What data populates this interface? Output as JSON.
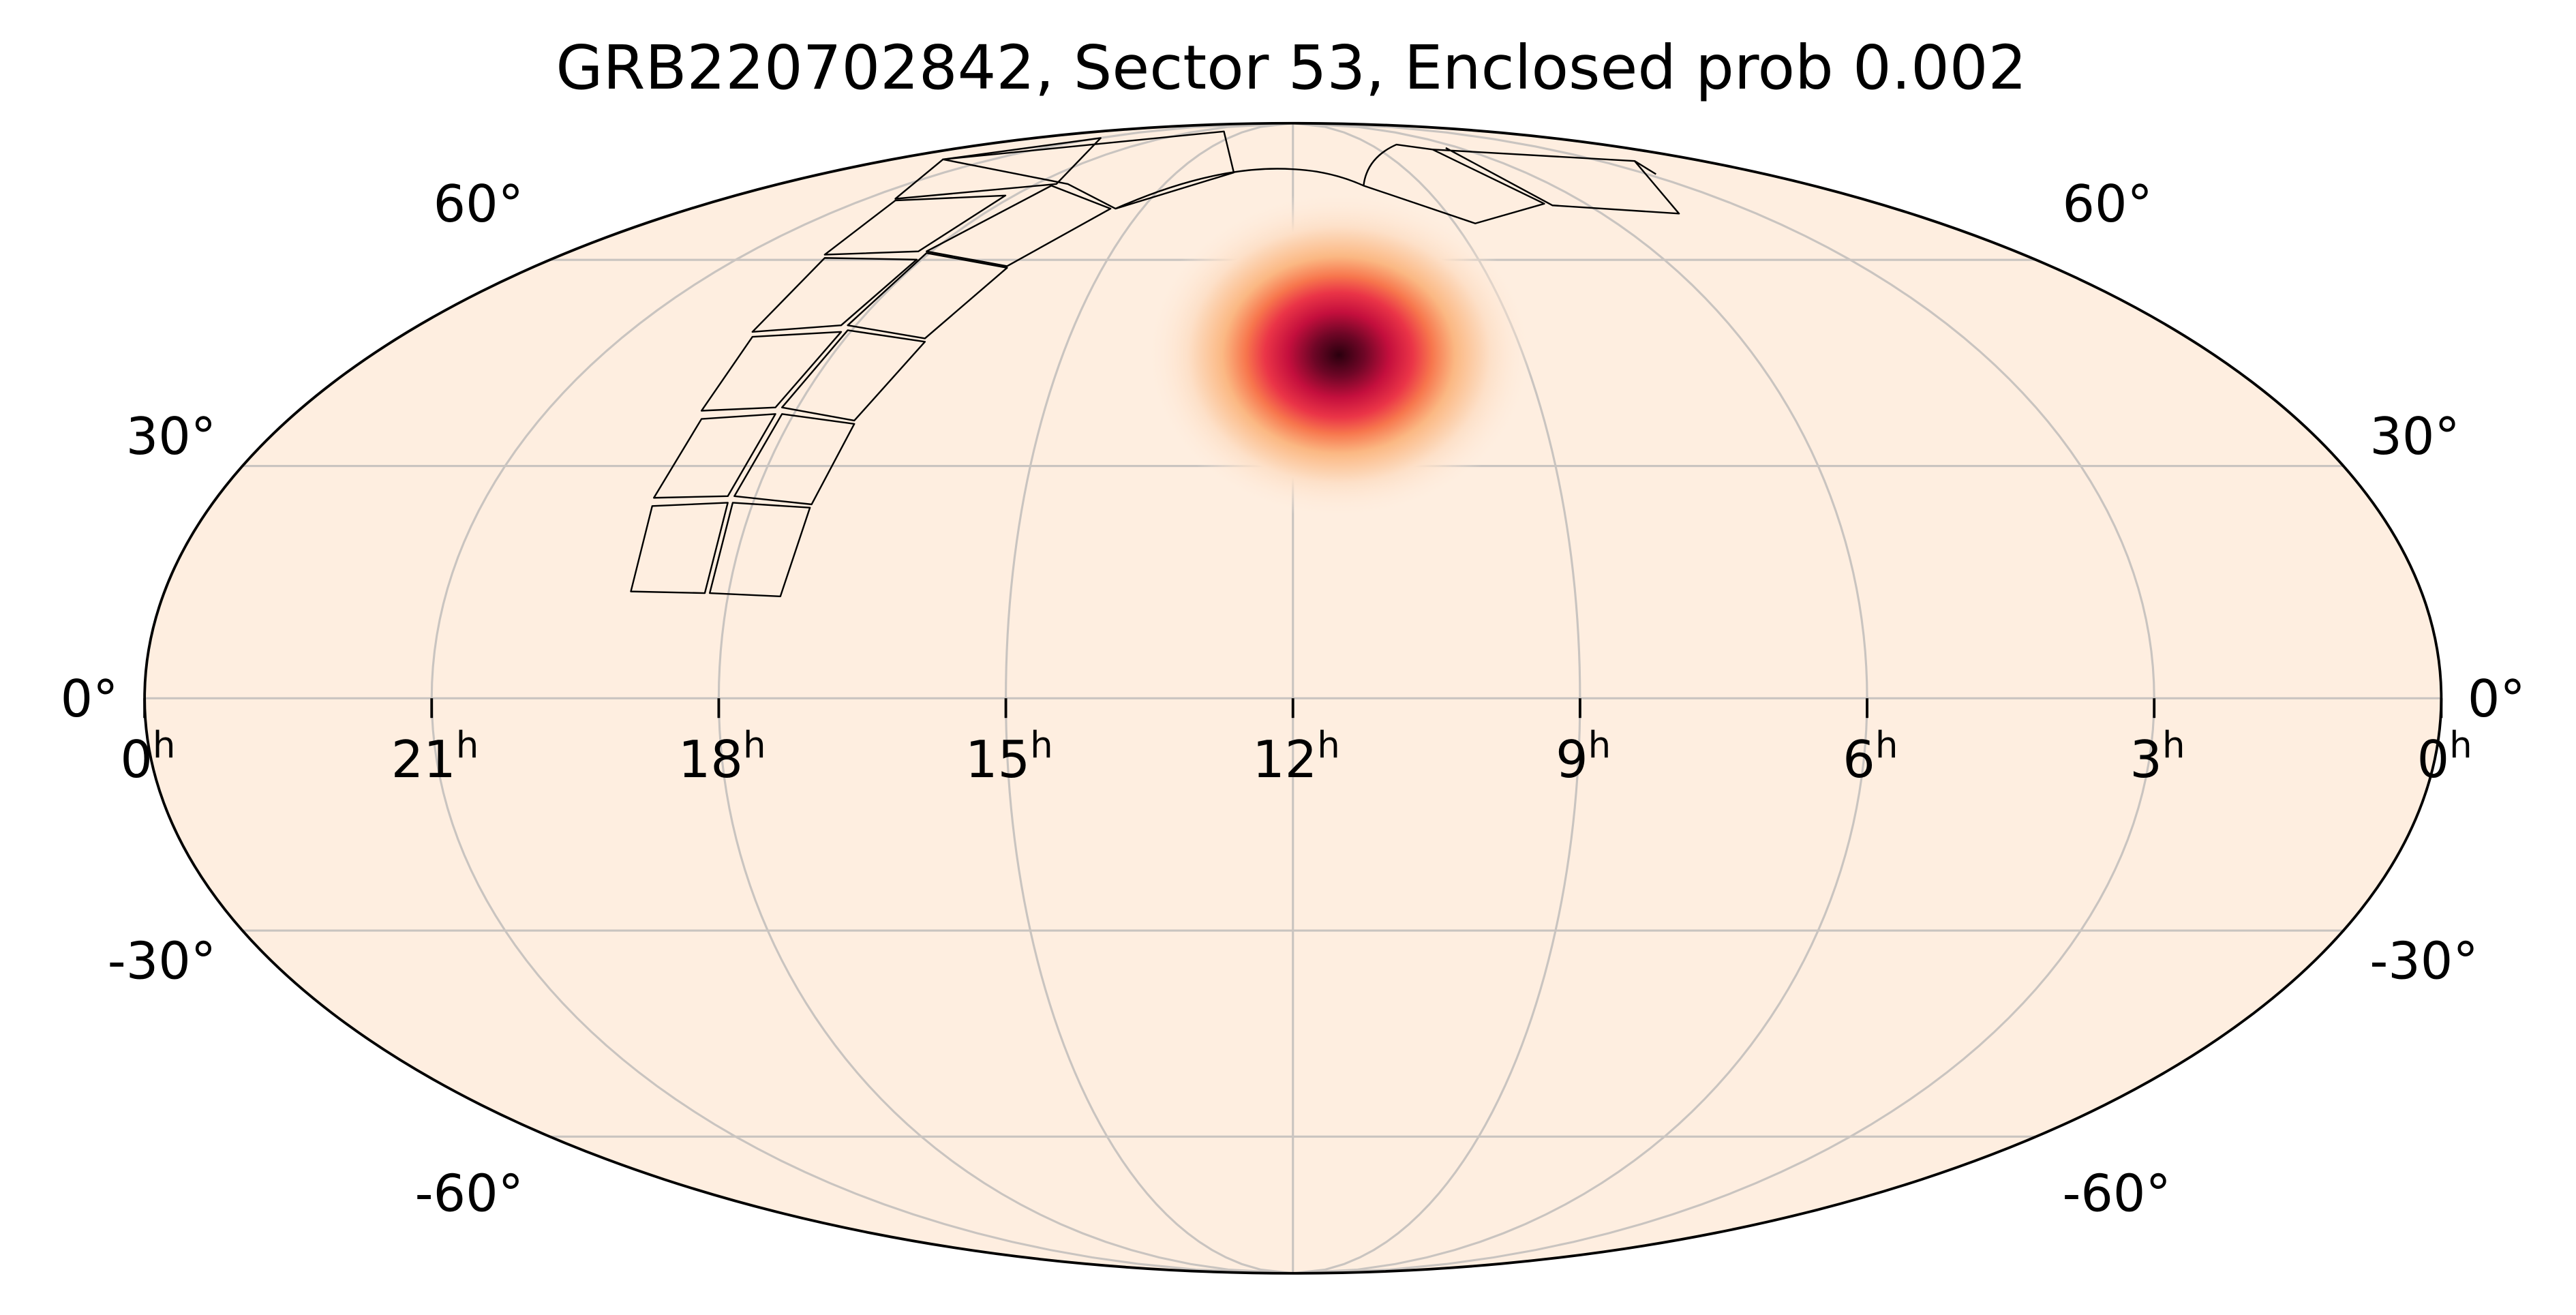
{
  "map": {
    "title": "GRB220702842, Sector 53, Enclosed prob 0.002",
    "ra_ticks": [
      {
        "value": 24,
        "label": "0",
        "sup": "h"
      },
      {
        "value": 21,
        "label": "21",
        "sup": "h"
      },
      {
        "value": 18,
        "label": "18",
        "sup": "h"
      },
      {
        "value": 15,
        "label": "15",
        "sup": "h"
      },
      {
        "value": 12,
        "label": "12",
        "sup": "h"
      },
      {
        "value": 9,
        "label": "9",
        "sup": "h"
      },
      {
        "value": 6,
        "label": "6",
        "sup": "h"
      },
      {
        "value": 3,
        "label": "3",
        "sup": "h"
      },
      {
        "value": 0,
        "label": "0",
        "sup": "h"
      }
    ],
    "dec_ticks": [
      {
        "value": 60,
        "label": "60°"
      },
      {
        "value": 30,
        "label": "30°"
      },
      {
        "value": 0,
        "label": "0°"
      },
      {
        "value": -30,
        "label": "-30°"
      },
      {
        "value": -60,
        "label": "-60°"
      }
    ]
  }
}
